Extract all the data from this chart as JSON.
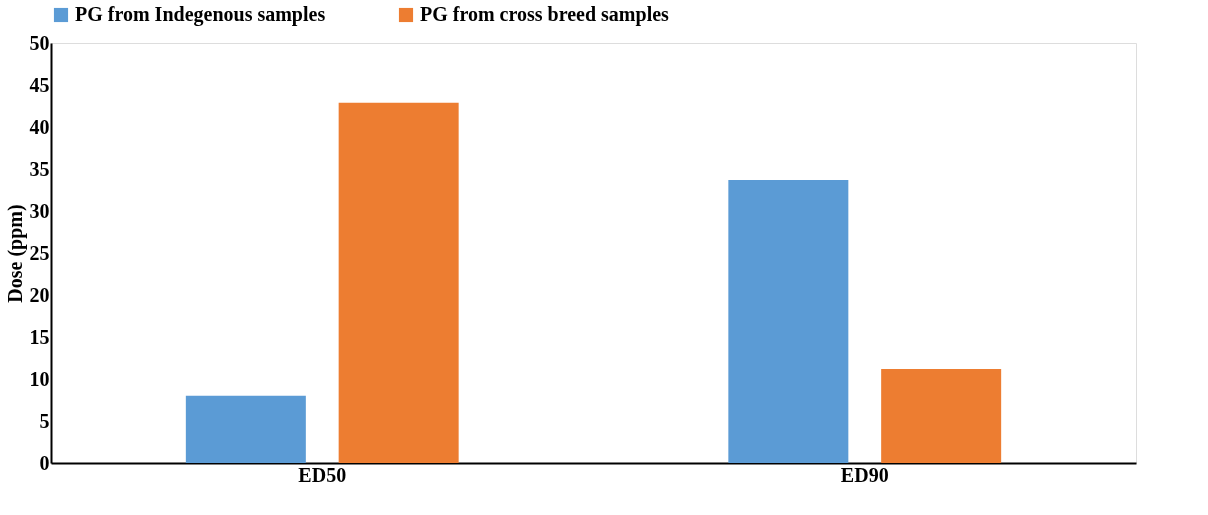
{
  "chart_data": {
    "type": "bar",
    "ylabel": "Dose (ppm)",
    "categories": [
      "ED50",
      "ED90"
    ],
    "series": [
      {
        "name": "PG from Indegenous samples",
        "color": "#5b9bd5",
        "values": [
          8.0,
          33.7
        ]
      },
      {
        "name": "PG from cross breed samples",
        "color": "#ed7d31",
        "values": [
          42.9,
          11.2
        ]
      }
    ],
    "ylim": [
      0,
      50
    ],
    "yticks": [
      0,
      5,
      10,
      15,
      20,
      25,
      30,
      35,
      40,
      45,
      50
    ],
    "grid": false,
    "legend": "top"
  }
}
